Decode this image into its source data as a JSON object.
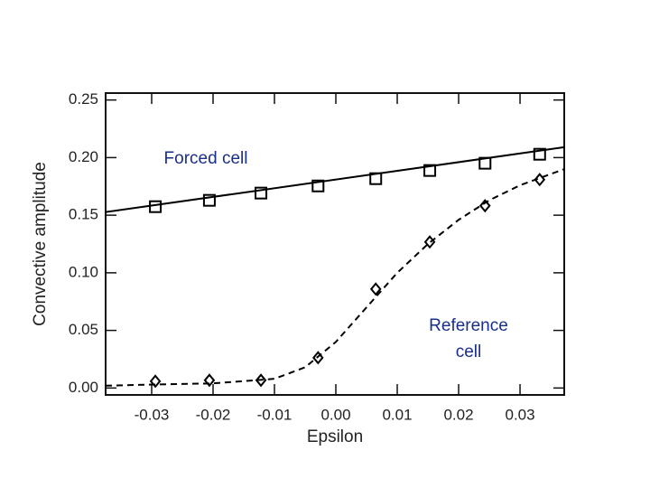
{
  "chart_data": {
    "type": "scatter",
    "x_label": "Epsilon",
    "y_label": "Convective amplitude",
    "xlim": [
      -0.0375,
      0.0372
    ],
    "ylim": [
      -0.006,
      0.256
    ],
    "xticks": [
      {
        "value": -0.03,
        "label": "-0.03"
      },
      {
        "value": -0.02,
        "label": "-0.02"
      },
      {
        "value": -0.01,
        "label": "-0.01"
      },
      {
        "value": 0,
        "label": "0.00"
      },
      {
        "value": 0.01,
        "label": "0.01"
      },
      {
        "value": 0.02,
        "label": "0.02"
      },
      {
        "value": 0.03,
        "label": "0.03"
      }
    ],
    "yticks": [
      {
        "value": 0,
        "label": "0.00"
      },
      {
        "value": 0.05,
        "label": "0.05"
      },
      {
        "value": 0.1,
        "label": "0.10"
      },
      {
        "value": 0.15,
        "label": "0.15"
      },
      {
        "value": 0.2,
        "label": "0.20"
      },
      {
        "value": 0.25,
        "label": "0.25"
      }
    ],
    "series": [
      {
        "marker": "square",
        "color": "#000000",
        "x": [
          -0.0294,
          -0.0206,
          -0.0122,
          -0.0029,
          0.0065,
          0.0153,
          0.0243,
          0.0332
        ],
        "values": [
          0.1574,
          0.1629,
          0.1692,
          0.1754,
          0.1817,
          0.1888,
          0.1951,
          0.2029
        ]
      },
      {
        "marker": "diamond",
        "color": "#000000",
        "x": [
          -0.0294,
          -0.0206,
          -0.0122,
          -0.0029,
          0.0065,
          0.0153,
          0.0243,
          0.0332
        ],
        "values": [
          0.0059,
          0.0067,
          0.0067,
          0.0263,
          0.0859,
          0.1268,
          0.1582,
          0.1809
        ]
      }
    ],
    "curves": [
      {
        "style": "solid",
        "color": "#000000",
        "x": [
          -0.0375,
          0.0372
        ],
        "y": [
          0.1527,
          0.209
        ]
      },
      {
        "style": "dashed",
        "color": "#000000",
        "x": [
          -0.0375,
          -0.03,
          -0.02,
          -0.01,
          -0.005,
          0,
          0.005,
          0.01,
          0.015,
          0.02,
          0.025,
          0.03,
          0.0372
        ],
        "y": [
          0.002,
          0.003,
          0.004,
          0.008,
          0.018,
          0.04,
          0.07,
          0.1,
          0.125,
          0.146,
          0.163,
          0.176,
          0.19
        ]
      }
    ],
    "annotations": [
      {
        "lines": [
          "Forced cell"
        ],
        "color": "#1a2f8a"
      },
      {
        "lines": [
          "Reference",
          "cell"
        ],
        "color": "#1a2f8a"
      }
    ]
  }
}
